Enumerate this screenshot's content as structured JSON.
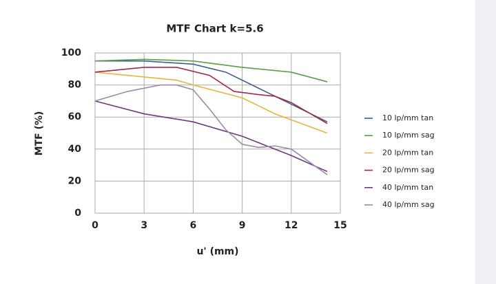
{
  "chart_data": {
    "type": "line",
    "title": "MTF Chart k=5.6",
    "x_label": "u' (mm)",
    "y_label": "MTF (%)",
    "xlim": [
      0,
      15
    ],
    "xticks": [
      0,
      3,
      6,
      9,
      12,
      15
    ],
    "ylim": [
      0,
      100
    ],
    "yticks": [
      0,
      20,
      40,
      60,
      80,
      100
    ],
    "grid": true,
    "legend": "right",
    "series": [
      {
        "name": "10 lp/mm tan",
        "color": "#3b5e8c",
        "x": [
          0,
          3,
          6,
          8,
          10,
          12,
          14.2
        ],
        "values": [
          95,
          95,
          93,
          88,
          78,
          68,
          57
        ]
      },
      {
        "name": "10 lp/mm sag",
        "color": "#5a9e48",
        "x": [
          0,
          3,
          6,
          9,
          12,
          14.2
        ],
        "values": [
          95,
          96,
          95,
          91,
          88,
          82
        ]
      },
      {
        "name": "20 lp/mm tan",
        "color": "#e8b440",
        "x": [
          0,
          3,
          5,
          6,
          9,
          11,
          14.2
        ],
        "values": [
          88,
          85,
          83,
          80,
          72,
          62,
          50
        ]
      },
      {
        "name": "20 lp/mm sag",
        "color": "#a02848",
        "x": [
          0,
          3,
          5,
          7,
          8.5,
          10,
          11,
          12,
          14.2
        ],
        "values": [
          88,
          91,
          91,
          86,
          76,
          74,
          73,
          69,
          56
        ]
      },
      {
        "name": "40 lp/mm tan",
        "color": "#6b3a7a",
        "x": [
          0,
          3,
          6,
          9,
          12,
          14.2
        ],
        "values": [
          70,
          62,
          57,
          48,
          36,
          26
        ]
      },
      {
        "name": "40 lp/mm sag",
        "color": "#9a8aa8",
        "x": [
          0,
          2,
          4,
          5,
          6,
          7,
          8,
          9,
          10,
          11,
          12,
          14.2
        ],
        "values": [
          70,
          76,
          80,
          80,
          77,
          65,
          52,
          43,
          41,
          42,
          40,
          24
        ]
      }
    ]
  }
}
